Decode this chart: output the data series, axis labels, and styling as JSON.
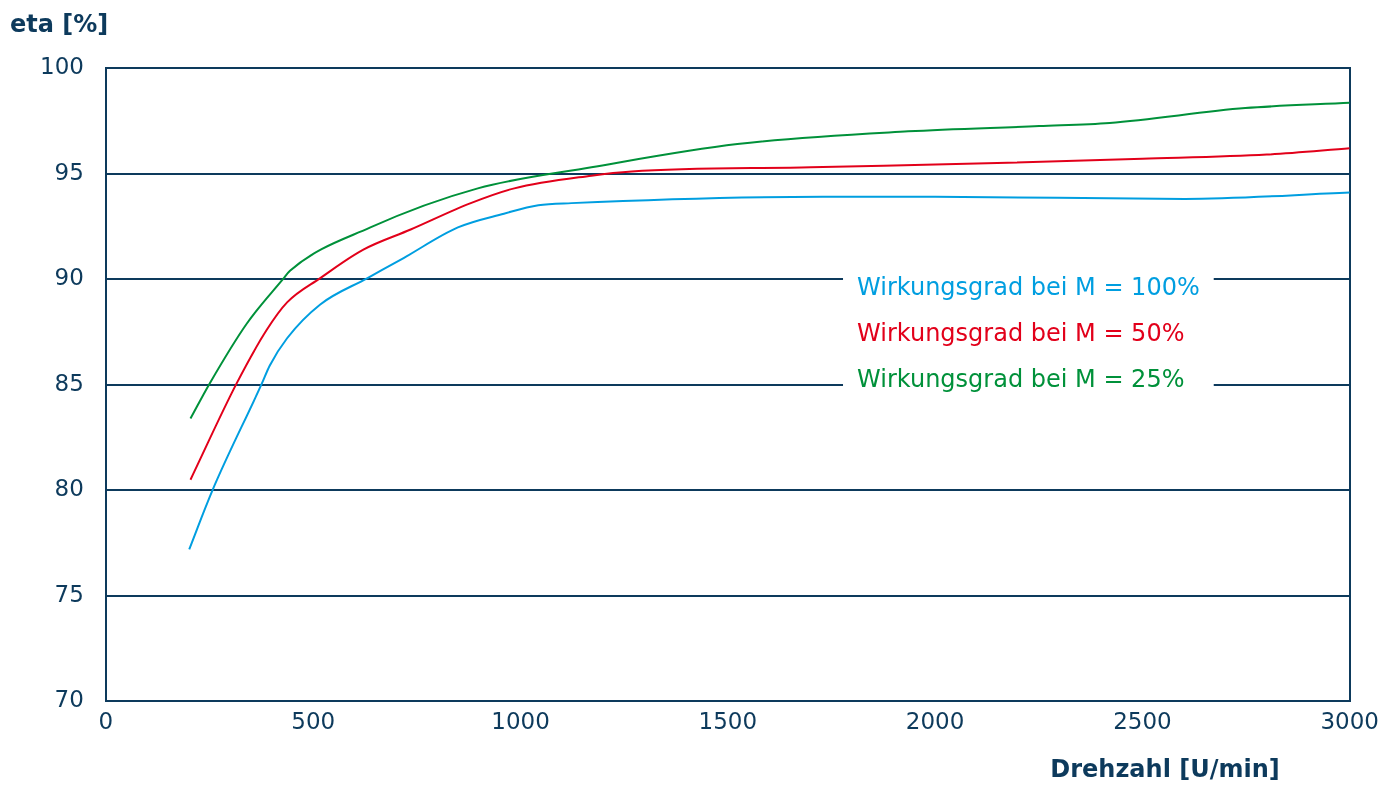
{
  "chart_data": {
    "type": "line",
    "xlabel": "Drehzahl [U/min]",
    "ylabel": "eta [%]",
    "xlim": [
      0,
      3000
    ],
    "xticks": [
      0,
      500,
      1000,
      1500,
      2000,
      2500,
      3000
    ],
    "ylim": [
      70,
      100
    ],
    "yticks": [
      70,
      75,
      80,
      85,
      90,
      95,
      100
    ],
    "grid": "y",
    "legend": "right",
    "marker": "none",
    "line_style": "solid",
    "series": [
      {
        "name": "Wirkungsgrad bei M = 100%",
        "color": "#009ee0",
        "x": [
          201,
          257,
          376,
          395,
          437,
          517,
          631,
          718,
          849,
          960,
          1043,
          1123,
          1729,
          2000,
          2602,
          3000
        ],
        "values": [
          77.2,
          80,
          85.05,
          85.9,
          87.2,
          88.8,
          90.05,
          91.0,
          92.45,
          93.1,
          93.5,
          93.6,
          93.9,
          93.9,
          93.8,
          94.1
        ]
      },
      {
        "name": "Wirkungsgrad bei M = 50%",
        "color": "#e2001a",
        "x": [
          204,
          315,
          388,
          437,
          517,
          621,
          735,
          880,
          985,
          1171,
          1268,
          1700,
          2150,
          2500,
          2800,
          3000
        ],
        "values": [
          80.5,
          85.05,
          87.6,
          88.9,
          90.05,
          91.4,
          92.35,
          93.6,
          94.3,
          94.9,
          95.1,
          95.3,
          95.5,
          95.7,
          95.9,
          96.2
        ]
      },
      {
        "name": "Wirkungsgrad bei M = 25%",
        "color": "#00913a",
        "x": [
          204,
          250,
          340,
          427,
          444,
          638,
          897,
          1171,
          1523,
          1935,
          2251,
          2421,
          2748,
          3000
        ],
        "values": [
          83.4,
          85.05,
          87.9,
          90.0,
          90.4,
          92.45,
          94.3,
          95.3,
          96.4,
          97.0,
          97.25,
          97.4,
          98.1,
          98.35
        ]
      }
    ]
  }
}
